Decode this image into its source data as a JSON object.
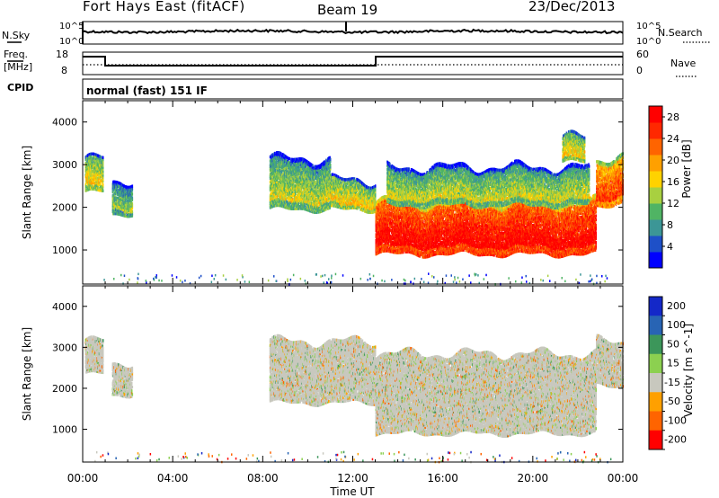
{
  "header": {
    "station": "Fort Hays East (fitACF)",
    "beam": "Beam 19",
    "date": "23/Dec/2013"
  },
  "panels": {
    "nsky_label": "N.Sky",
    "nsearch_label": "N.Search",
    "noise_ticks": [
      "10^5",
      "10^0"
    ],
    "freq_label": "Freq.",
    "freq_unit": "[MHz]",
    "freq_ticks": [
      "18",
      "8"
    ],
    "nave_label": "Nave",
    "nave_ticks": [
      "60",
      "0"
    ],
    "cpid_label": "CPID",
    "cpid_text": "normal (fast) 151 IF"
  },
  "chart_data": [
    {
      "type": "heatmap",
      "title": "",
      "xlabel": "",
      "ylabel": "Slant Range [km]",
      "x_ticks": [
        "00:00",
        "04:00",
        "08:00",
        "12:00",
        "16:00",
        "20:00",
        "00:00"
      ],
      "y_ticks": [
        1000,
        2000,
        3000,
        4000
      ],
      "ylim": [
        200,
        4500
      ],
      "colorbar": {
        "label": "Power [dB]",
        "ticks": [
          4,
          8,
          12,
          16,
          20,
          24,
          28
        ],
        "range": [
          0,
          30
        ],
        "colors": [
          "#0000ff",
          "#1e50c8",
          "#3c9696",
          "#50b464",
          "#a8d040",
          "#ffd200",
          "#ffa000",
          "#ff6400",
          "#ff2800",
          "#ff0000"
        ]
      },
      "echo_regions": [
        {
          "t_start": 0.1,
          "t_end": 0.9,
          "range_min": 2400,
          "range_max": 3200,
          "power_db": 14
        },
        {
          "t_start": 1.3,
          "t_end": 2.2,
          "range_min": 1900,
          "range_max": 2700,
          "power_db": 10
        },
        {
          "t_start": 8.3,
          "t_end": 11.0,
          "range_min": 2000,
          "range_max": 3200,
          "power_db": 12
        },
        {
          "t_start": 11.0,
          "t_end": 13.0,
          "range_min": 2000,
          "range_max": 2700,
          "power_db": 14
        },
        {
          "t_start": 13.0,
          "t_end": 22.8,
          "range_min": 950,
          "range_max": 2200,
          "power_db": 26
        },
        {
          "t_start": 13.5,
          "t_end": 22.5,
          "range_min": 2100,
          "range_max": 3000,
          "power_db": 12
        },
        {
          "t_start": 21.3,
          "t_end": 22.3,
          "range_min": 3100,
          "range_max": 3700,
          "power_db": 14
        },
        {
          "t_start": 22.8,
          "t_end": 24.0,
          "range_min": 2100,
          "range_max": 3200,
          "power_db": 22
        }
      ]
    },
    {
      "type": "heatmap",
      "title": "",
      "xlabel": "Time UT",
      "ylabel": "Slant Range [km]",
      "x_ticks": [
        "00:00",
        "04:00",
        "08:00",
        "12:00",
        "16:00",
        "20:00",
        "00:00"
      ],
      "y_ticks": [
        1000,
        2000,
        3000,
        4000
      ],
      "ylim": [
        200,
        4500
      ],
      "colorbar": {
        "label": "Velocity [m s^-1]",
        "ticks": [
          200,
          100,
          50,
          15,
          -15,
          -50,
          -100,
          -200
        ],
        "colors": [
          "#1428c8",
          "#2864b4",
          "#3c965a",
          "#8cd050",
          "#c8c8be",
          "#ffa000",
          "#ff6400",
          "#ff0000"
        ]
      },
      "echo_regions": [
        {
          "t_start": 0.1,
          "t_end": 0.9,
          "range_min": 2400,
          "range_max": 3200,
          "velocity": 0
        },
        {
          "t_start": 1.3,
          "t_end": 2.2,
          "range_min": 1900,
          "range_max": 2700,
          "velocity": 0
        },
        {
          "t_start": 8.3,
          "t_end": 13.0,
          "range_min": 1700,
          "range_max": 3200,
          "velocity": 0
        },
        {
          "t_start": 13.0,
          "t_end": 22.8,
          "range_min": 950,
          "range_max": 2900,
          "velocity": 0
        },
        {
          "t_start": 22.8,
          "t_end": 24.0,
          "range_min": 2100,
          "range_max": 3200,
          "velocity": 0
        }
      ]
    }
  ]
}
